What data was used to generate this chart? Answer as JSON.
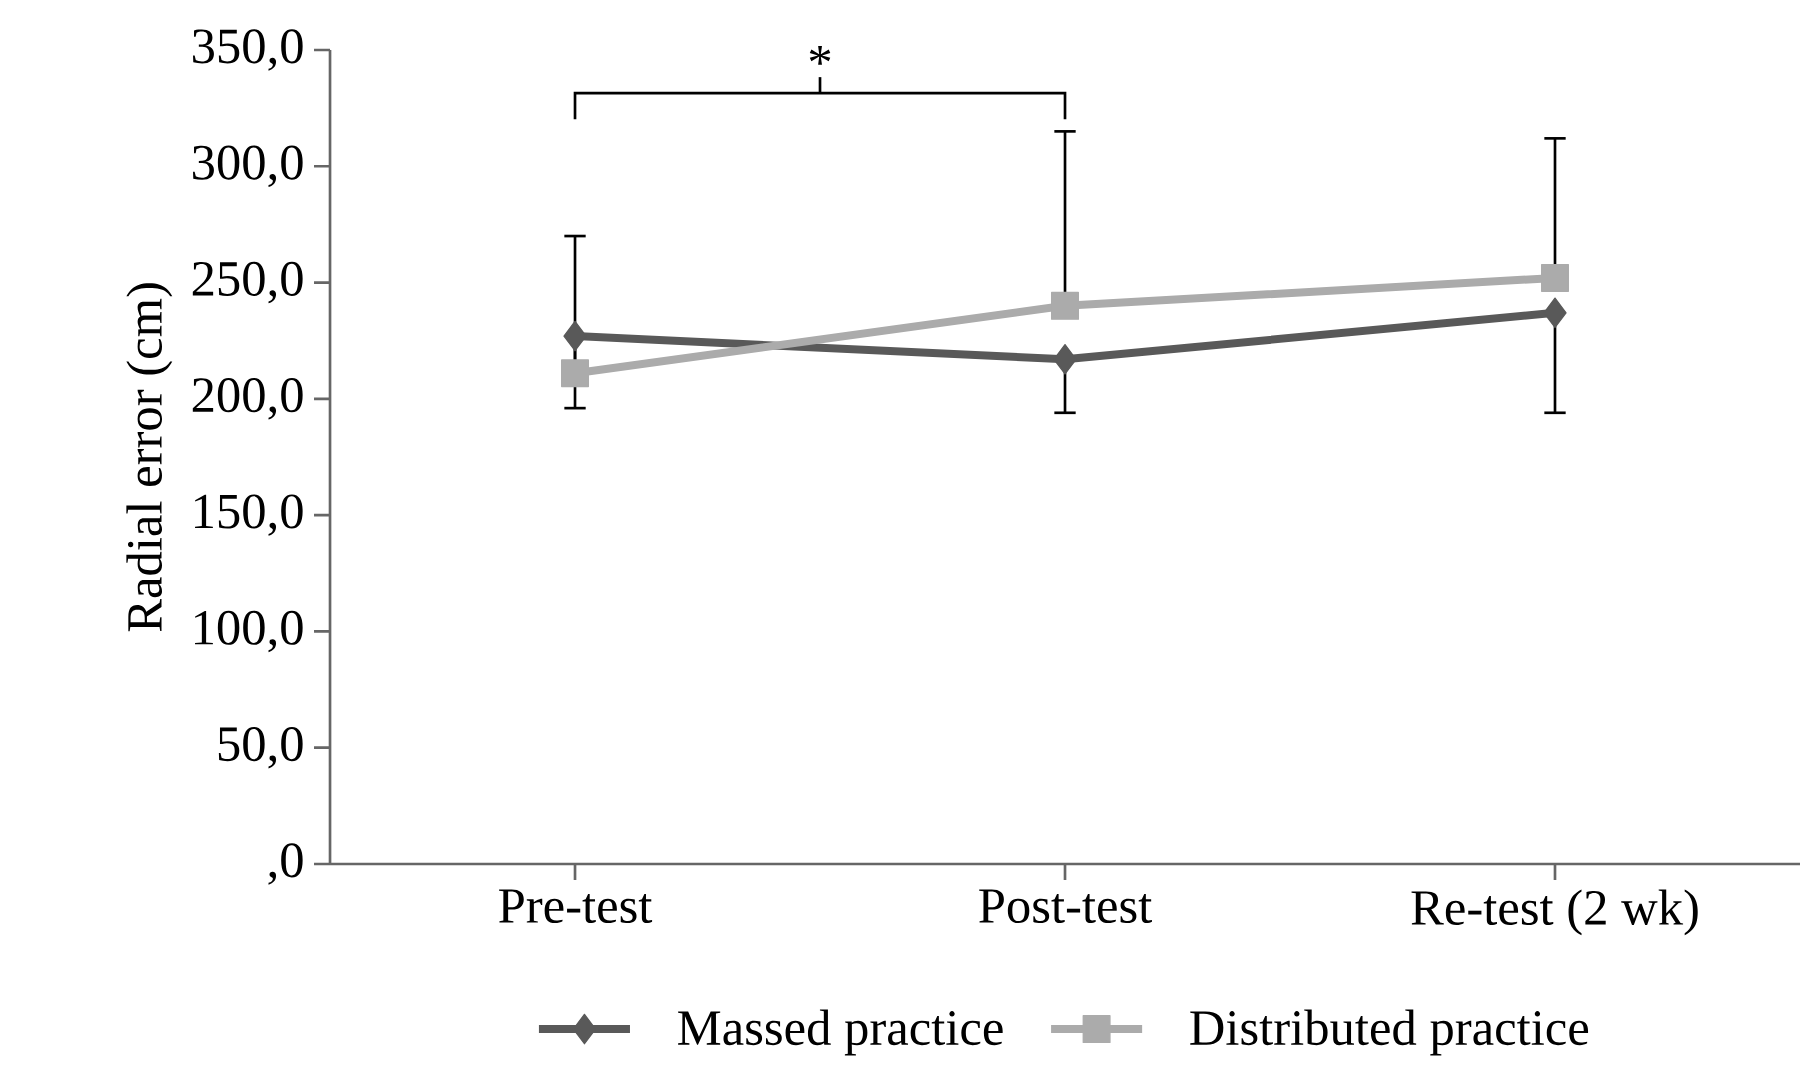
{
  "chart_data": {
    "type": "line",
    "ylabel": "Radial error (cm)",
    "categories": [
      "Pre-test",
      "Post-test",
      "Re-test (2 wk)"
    ],
    "series": [
      {
        "name": "Massed practice",
        "color": "#595959",
        "marker": "diamond",
        "values": [
          227,
          217,
          237
        ],
        "errors": [
          [
            196,
            227
          ],
          [
            194,
            217
          ],
          [
            194,
            237
          ]
        ]
      },
      {
        "name": "Distributed practice",
        "color": "#ababab",
        "marker": "square",
        "values": [
          211,
          240,
          252
        ],
        "errors": [
          [
            211,
            270
          ],
          [
            240,
            315
          ],
          [
            252,
            312
          ]
        ]
      }
    ],
    "ylim": [
      0,
      350
    ],
    "yticks": [
      {
        "value": 0,
        "label": ",0"
      },
      {
        "value": 50,
        "label": "50,0"
      },
      {
        "value": 100,
        "label": "100,0"
      },
      {
        "value": 150,
        "label": "150,0"
      },
      {
        "value": 200,
        "label": "200,0"
      },
      {
        "value": 250,
        "label": "250,0"
      },
      {
        "value": 300,
        "label": "300,0"
      },
      {
        "value": 350,
        "label": "350,0"
      }
    ],
    "annotations": [
      "*"
    ],
    "legend": "bottom",
    "grid": false
  }
}
